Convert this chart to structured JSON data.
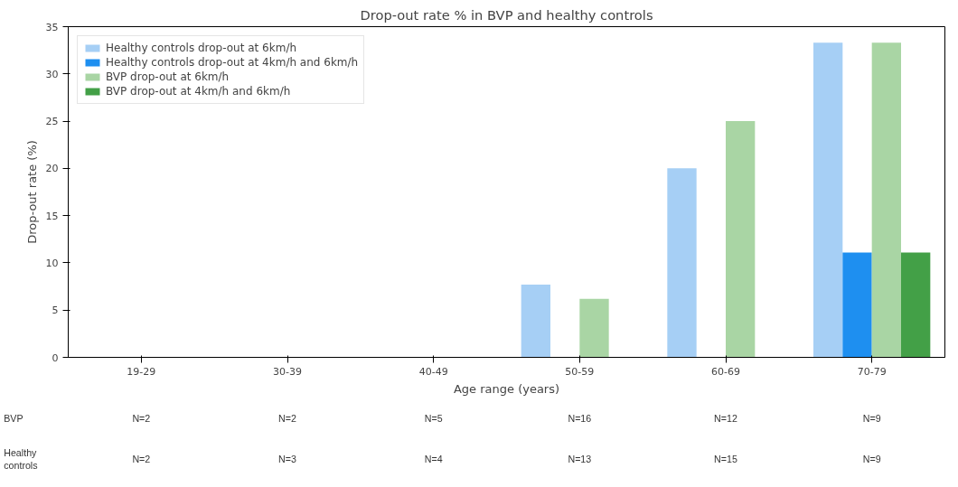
{
  "chart_data": {
    "type": "bar",
    "title": "Drop-out rate % in BVP and healthy controls",
    "xlabel": "Age range (years)",
    "ylabel": "Drop-out rate (%)",
    "categories": [
      "19-29",
      "30-39",
      "40-49",
      "50-59",
      "60-69",
      "70-79"
    ],
    "series": [
      {
        "name": "Healthy controls drop-out at 6km/h",
        "color": "#a6cff5",
        "values": [
          0,
          0,
          0,
          7.7,
          20,
          33.3
        ]
      },
      {
        "name": "Healthy controls drop-out at 4km/h and 6km/h",
        "color": "#1e8ff0",
        "values": [
          0,
          0,
          0,
          0,
          0,
          11.1
        ]
      },
      {
        "name": "BVP drop-out at 6km/h",
        "color": "#a9d5a4",
        "values": [
          0,
          0,
          0,
          6.2,
          25,
          33.3
        ]
      },
      {
        "name": "BVP drop-out at 4km/h and 6km/h",
        "color": "#43a047",
        "values": [
          0,
          0,
          0,
          0,
          0,
          11.1
        ]
      }
    ],
    "ylim": [
      0,
      35
    ],
    "yticks": [
      0,
      5,
      10,
      15,
      20,
      25,
      30,
      35
    ],
    "grid": false,
    "legend": "top left",
    "annotations": [
      "BVP",
      "N=2",
      "N=2",
      "N=5",
      "N=16",
      "N=12",
      "N=9",
      "Healthy\ncontrols",
      "N=2",
      "N=3",
      "N=4",
      "N=13",
      "N=15",
      "N=9"
    ]
  }
}
